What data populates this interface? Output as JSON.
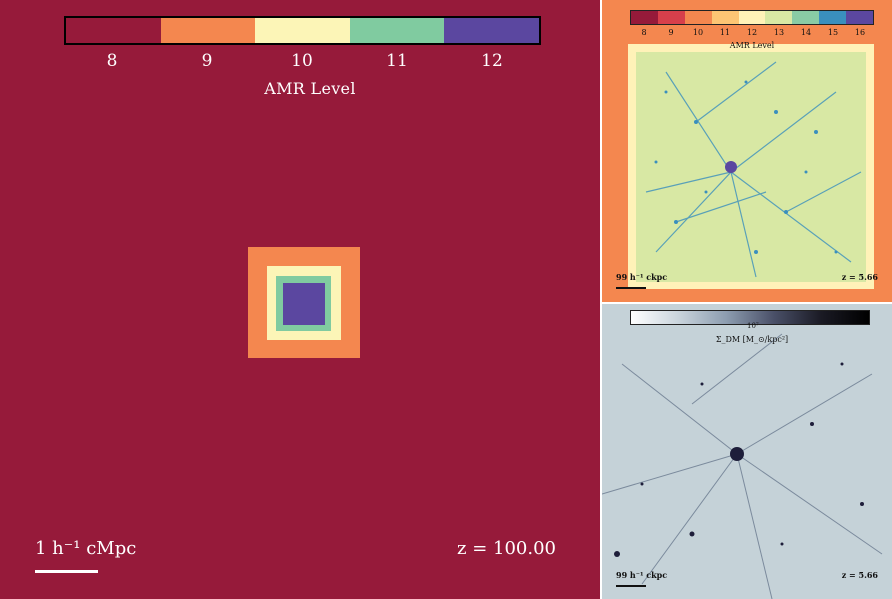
{
  "main_panel": {
    "colorbar": {
      "ticks": [
        "8",
        "9",
        "10",
        "11",
        "12"
      ],
      "label": "AMR Level",
      "colors": [
        "#961a3a",
        "#f4874f",
        "#fcf5b7",
        "#80cba0",
        "#5b47a0"
      ]
    },
    "scale_text": "1 h⁻¹ cMpc",
    "redshift_text": "z = 100.00"
  },
  "top_right_panel": {
    "colorbar": {
      "ticks": [
        "8",
        "9",
        "10",
        "11",
        "12",
        "13",
        "14",
        "15",
        "16"
      ],
      "label": "AMR Level",
      "colors": [
        "#961a3a",
        "#d73f4b",
        "#f4874f",
        "#fdc574",
        "#fff2b8",
        "#d8e8a4",
        "#89cba5",
        "#3a8fbe",
        "#5b47a0"
      ]
    },
    "scale_text": "99 h⁻¹ ckpc",
    "redshift_text": "z = 5.66"
  },
  "bottom_right_panel": {
    "colorbar": {
      "tick": "10⁷",
      "label": "Σ_DM [M_⊙/kpc²]"
    },
    "scale_text": "99 h⁻¹ ckpc",
    "redshift_text": "z = 5.66"
  }
}
